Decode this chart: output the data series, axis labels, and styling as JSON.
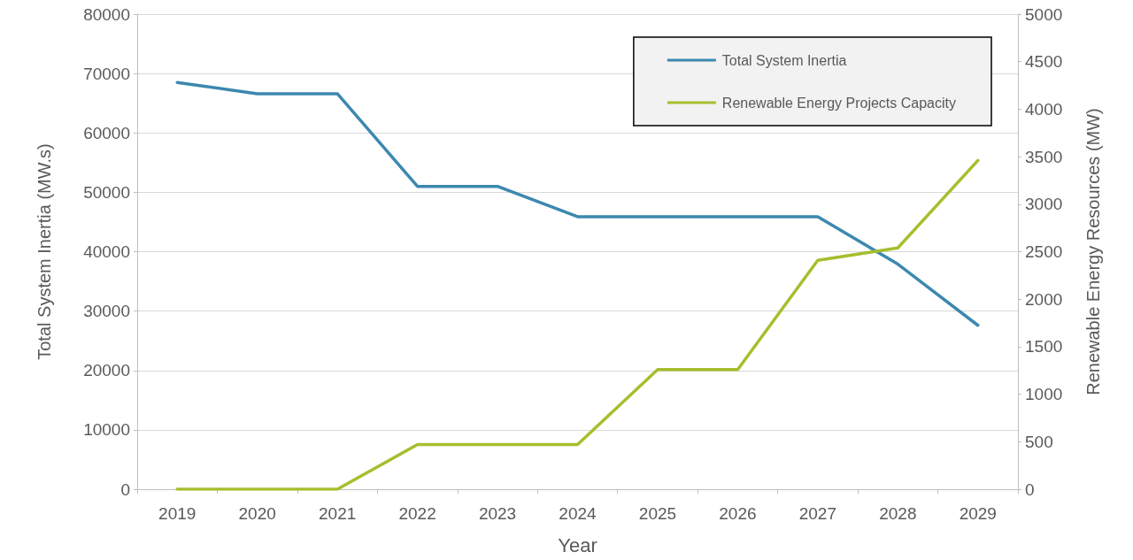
{
  "chart_data": {
    "type": "line",
    "xlabel": "Year",
    "ylabel": "Total System Inertia (MW.s)",
    "y2label": "Renewable Energy Resources (MW)",
    "categories": [
      "2019",
      "2020",
      "2021",
      "2022",
      "2023",
      "2024",
      "2025",
      "2026",
      "2027",
      "2028",
      "2029"
    ],
    "series": [
      {
        "name": "Total System Inertia",
        "color": "#3c88af",
        "values": [
          68500,
          66600,
          66600,
          51000,
          51000,
          45900,
          45900,
          45900,
          45900,
          37900,
          27600
        ]
      },
      {
        "name": "Renewable Energy Projects Capacity",
        "color": "#a5bf2d",
        "axis": "y2",
        "values": [
          0,
          0,
          0,
          470,
          470,
          470,
          1260,
          1260,
          2410,
          2540,
          3460
        ]
      }
    ],
    "ylim": [
      0,
      80000
    ],
    "yticks": [
      0,
      10000,
      20000,
      30000,
      40000,
      50000,
      60000,
      70000,
      80000
    ],
    "y2lim": [
      0,
      5000
    ],
    "y2ticks": [
      0,
      500,
      1000,
      1500,
      2000,
      2500,
      3000,
      3500,
      4000,
      4500,
      5000
    ],
    "grid": "y",
    "legend": "top right",
    "marker": "none",
    "line_style": "solid"
  }
}
